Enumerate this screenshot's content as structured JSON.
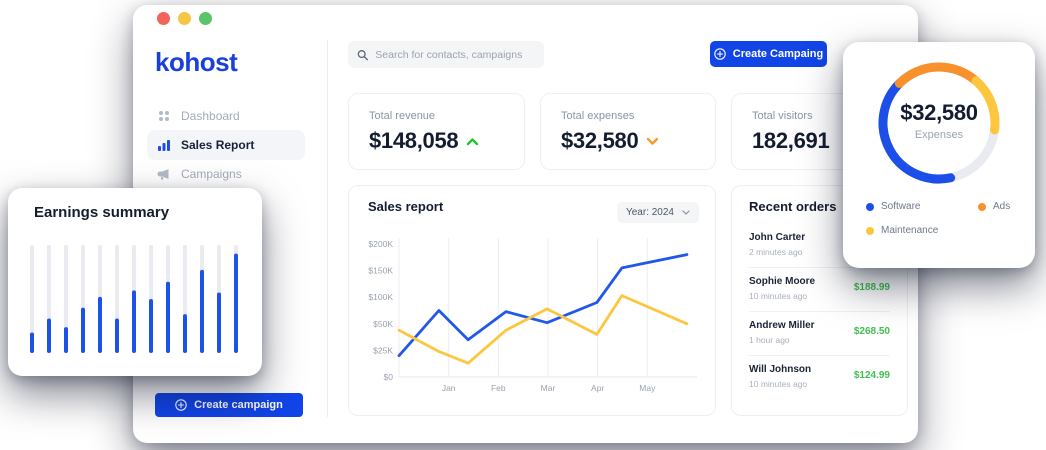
{
  "window": {
    "traffic_lights": [
      "#f2635c",
      "#f5c645",
      "#5dc36a"
    ]
  },
  "sidebar": {
    "logo": "kohost",
    "items": [
      {
        "label": "Dashboard",
        "icon": "grid-icon",
        "active": false
      },
      {
        "label": "Sales Report",
        "icon": "bar-chart-icon",
        "active": true
      },
      {
        "label": "Campaigns",
        "icon": "megaphone-icon",
        "active": false
      }
    ],
    "create_button": "Create campaign"
  },
  "topbar": {
    "search_placeholder": "Search for contacts, campaigns",
    "create_button": "Create Campaing"
  },
  "stats": [
    {
      "label": "Total revenue",
      "value": "$148,058",
      "trend": "up",
      "trend_color": "#22c32e"
    },
    {
      "label": "Total expenses",
      "value": "$32,580",
      "trend": "down",
      "trend_color": "#f8992c"
    },
    {
      "label": "Total visitors",
      "value": "182,691",
      "trend": "none",
      "trend_color": ""
    }
  ],
  "sales_report": {
    "title": "Sales report",
    "year_filter": "Year: 2024"
  },
  "recent_orders": {
    "title": "Recent orders",
    "orders": [
      {
        "name": "John Carter",
        "time": "2 minutes ago",
        "amount": ""
      },
      {
        "name": "Sophie Moore",
        "time": "10 minutes ago",
        "amount": "$188.99"
      },
      {
        "name": "Andrew Miller",
        "time": "1 hour ago",
        "amount": "$268.50"
      },
      {
        "name": "Will Johnson",
        "time": "10 minutes ago",
        "amount": "$124.99"
      }
    ]
  },
  "chart_data": [
    {
      "type": "line",
      "title": "Sales report",
      "x_tick_labels": [
        "Jan",
        "Feb",
        "Mar",
        "Apr",
        "May"
      ],
      "gridline_pct": [
        16.67,
        33.33,
        50,
        66.67,
        83.33
      ],
      "y_tick_labels": [
        "$0",
        "$25K",
        "$50K",
        "$100K",
        "$150K",
        "$200K"
      ],
      "y_tick_values": [
        0,
        25,
        50,
        100,
        150,
        200
      ],
      "unit": "thousand USD",
      "x_pct": [
        0,
        13.4,
        23.2,
        35.9,
        49.7,
        66.4,
        74.8,
        96.6
      ],
      "series": [
        {
          "name": "revenue",
          "color": "#2158eb",
          "values": [
            20,
            75,
            35,
            73,
            52,
            90,
            155,
            180
          ]
        },
        {
          "name": "expenses",
          "color": "#fcc63f",
          "values": [
            44,
            24,
            13,
            44,
            78,
            40,
            103,
            50
          ]
        }
      ],
      "legend_position": "none",
      "grid": "vertical-only"
    },
    {
      "type": "pie",
      "center_value": "$32,580",
      "center_label": "Expenses",
      "start_deg": 168,
      "slices": [
        {
          "label": "Software",
          "color": "#1d4fe8",
          "pct": 40.8
        },
        {
          "label": "Ads",
          "color": "#f8902b",
          "pct": 24.0
        },
        {
          "label": "Maintenance",
          "color": "#fcc63f",
          "pct": 15.5
        },
        {
          "label": "other",
          "color": "#e9ebf1",
          "pct": 19.7
        }
      ],
      "legend": [
        "Software",
        "Ads",
        "Maintenance"
      ]
    },
    {
      "type": "bar",
      "title": "Earnings summary",
      "values_pct": [
        19,
        32,
        24,
        42,
        52,
        32,
        58,
        50,
        66,
        36,
        77,
        56,
        92
      ],
      "bar_color": "#1d52e8",
      "track_color": "#e9ebf0"
    }
  ]
}
